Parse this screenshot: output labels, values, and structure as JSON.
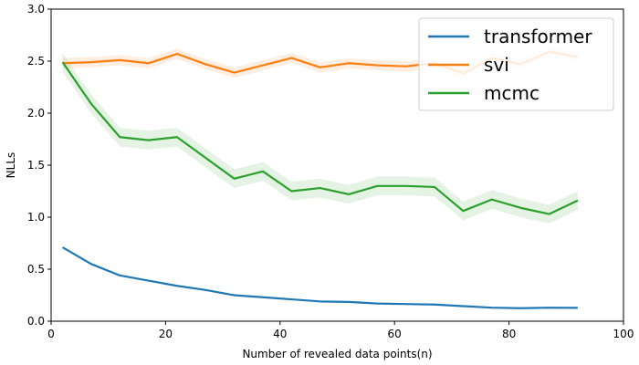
{
  "chart_data": {
    "type": "line",
    "xlabel": "Number of revealed data points(n)",
    "ylabel": "NLLs",
    "xlim": [
      0,
      100
    ],
    "ylim": [
      0,
      3.0
    ],
    "xticks": [
      0,
      20,
      40,
      60,
      80,
      100
    ],
    "xtick_labels": [
      "0",
      "20",
      "40",
      "60",
      "80",
      "100"
    ],
    "yticks": [
      0.0,
      0.5,
      1.0,
      1.5,
      2.0,
      2.5,
      3.0
    ],
    "ytick_labels": [
      "0.0",
      "0.5",
      "1.0",
      "1.5",
      "2.0",
      "2.5",
      "3.0"
    ],
    "grid": false,
    "legend_position": "top-right",
    "x": [
      2,
      7,
      12,
      17,
      22,
      27,
      32,
      37,
      42,
      47,
      52,
      57,
      62,
      67,
      72,
      77,
      82,
      87,
      92
    ],
    "series": [
      {
        "name": "transformer",
        "color": "#1f77b4",
        "values": [
          0.71,
          0.55,
          0.44,
          0.39,
          0.34,
          0.3,
          0.25,
          0.23,
          0.21,
          0.19,
          0.185,
          0.17,
          0.165,
          0.16,
          0.145,
          0.13,
          0.125,
          0.13,
          0.128
        ],
        "band": null
      },
      {
        "name": "svi",
        "color": "#ff7f0e",
        "values": [
          2.48,
          2.49,
          2.51,
          2.48,
          2.57,
          2.47,
          2.39,
          2.46,
          2.53,
          2.44,
          2.48,
          2.46,
          2.45,
          2.48,
          2.38,
          2.53,
          2.47,
          2.59,
          2.54
        ],
        "band": 0.05
      },
      {
        "name": "mcmc",
        "color": "#2ca02c",
        "values": [
          2.49,
          2.09,
          1.77,
          1.74,
          1.77,
          1.57,
          1.37,
          1.44,
          1.25,
          1.28,
          1.22,
          1.3,
          1.3,
          1.29,
          1.06,
          1.17,
          1.09,
          1.03,
          1.16
        ],
        "band": 0.09
      }
    ]
  }
}
